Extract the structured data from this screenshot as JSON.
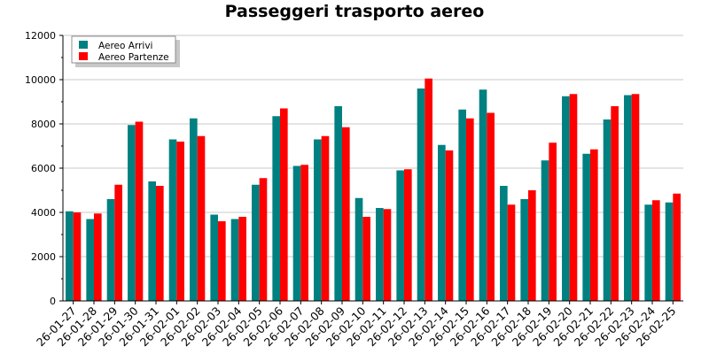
{
  "chart_data": {
    "type": "bar",
    "title": "Passeggeri trasporto aereo",
    "xlabel": "",
    "ylabel": "",
    "ylim": [
      0,
      12000
    ],
    "yticks": [
      0,
      2000,
      4000,
      6000,
      8000,
      10000,
      12000
    ],
    "grid": true,
    "legend_position": "top-left",
    "categories": [
      "26-01-27",
      "26-01-28",
      "26-01-29",
      "26-01-30",
      "26-01-31",
      "26-02-01",
      "26-02-02",
      "26-02-03",
      "26-02-04",
      "26-02-05",
      "26-02-06",
      "26-02-07",
      "26-02-08",
      "26-02-09",
      "26-02-10",
      "26-02-11",
      "26-02-12",
      "26-02-13",
      "26-02-14",
      "26-02-15",
      "26-02-16",
      "26-02-17",
      "26-02-18",
      "26-02-19",
      "26-02-20",
      "26-02-21",
      "26-02-22",
      "26-02-23",
      "26-02-24",
      "26-02-25"
    ],
    "series": [
      {
        "name": "Aereo Arrivi",
        "color": "#008080",
        "values": [
          4050,
          3700,
          4600,
          7950,
          5400,
          7300,
          8250,
          3900,
          3700,
          5250,
          8350,
          6100,
          7300,
          8800,
          4650,
          4200,
          5900,
          9600,
          7050,
          8650,
          9550,
          5200,
          4600,
          6350,
          9250,
          6650,
          8200,
          9300,
          4350,
          4450
        ]
      },
      {
        "name": "Aereo Partenze",
        "color": "#ff0000",
        "values": [
          4000,
          3950,
          5250,
          8100,
          5200,
          7200,
          7450,
          3600,
          3800,
          5550,
          8700,
          6150,
          7450,
          7850,
          3800,
          4150,
          5950,
          10050,
          6800,
          8250,
          8500,
          4350,
          5000,
          7150,
          9350,
          6850,
          8800,
          9350,
          4550,
          4850
        ]
      }
    ]
  }
}
